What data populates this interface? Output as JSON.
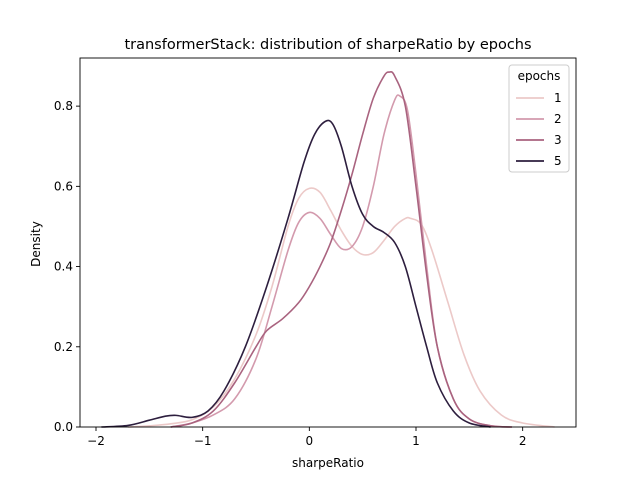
{
  "chart_data": {
    "type": "line",
    "title": "transformerStack: distribution of sharpeRatio by epochs",
    "xlabel": "sharpeRatio",
    "ylabel": "Density",
    "xlim": [
      -2.15,
      2.5
    ],
    "ylim": [
      0,
      0.92
    ],
    "xticks": [
      -2,
      -1,
      0,
      1,
      2
    ],
    "yticks": [
      0.0,
      0.2,
      0.4,
      0.6,
      0.8
    ],
    "grid": false,
    "legend": {
      "title": "epochs",
      "placement": "top-right"
    },
    "series": [
      {
        "name": "1",
        "color": "#ecc9c8",
        "points": [
          [
            -1.7,
            0.0
          ],
          [
            -1.5,
            0.003
          ],
          [
            -1.3,
            0.008
          ],
          [
            -1.1,
            0.018
          ],
          [
            -0.9,
            0.05
          ],
          [
            -0.7,
            0.12
          ],
          [
            -0.5,
            0.23
          ],
          [
            -0.35,
            0.35
          ],
          [
            -0.2,
            0.5
          ],
          [
            -0.1,
            0.57
          ],
          [
            0.0,
            0.595
          ],
          [
            0.1,
            0.585
          ],
          [
            0.2,
            0.54
          ],
          [
            0.3,
            0.49
          ],
          [
            0.4,
            0.45
          ],
          [
            0.5,
            0.43
          ],
          [
            0.6,
            0.435
          ],
          [
            0.7,
            0.465
          ],
          [
            0.8,
            0.5
          ],
          [
            0.9,
            0.52
          ],
          [
            0.95,
            0.52
          ],
          [
            1.05,
            0.505
          ],
          [
            1.15,
            0.44
          ],
          [
            1.3,
            0.31
          ],
          [
            1.45,
            0.18
          ],
          [
            1.6,
            0.09
          ],
          [
            1.8,
            0.03
          ],
          [
            2.0,
            0.01
          ],
          [
            2.3,
            0.0
          ]
        ]
      },
      {
        "name": "2",
        "color": "#d39aad",
        "points": [
          [
            -1.3,
            0.0
          ],
          [
            -1.1,
            0.01
          ],
          [
            -0.9,
            0.03
          ],
          [
            -0.7,
            0.07
          ],
          [
            -0.5,
            0.17
          ],
          [
            -0.35,
            0.3
          ],
          [
            -0.2,
            0.44
          ],
          [
            -0.1,
            0.51
          ],
          [
            0.0,
            0.535
          ],
          [
            0.1,
            0.52
          ],
          [
            0.2,
            0.48
          ],
          [
            0.3,
            0.445
          ],
          [
            0.4,
            0.45
          ],
          [
            0.5,
            0.5
          ],
          [
            0.6,
            0.6
          ],
          [
            0.7,
            0.73
          ],
          [
            0.8,
            0.815
          ],
          [
            0.85,
            0.825
          ],
          [
            0.92,
            0.79
          ],
          [
            1.0,
            0.63
          ],
          [
            1.1,
            0.4
          ],
          [
            1.2,
            0.2
          ],
          [
            1.35,
            0.07
          ],
          [
            1.5,
            0.02
          ],
          [
            1.7,
            0.003
          ],
          [
            1.9,
            0.0
          ]
        ]
      },
      {
        "name": "3",
        "color": "#a9637f",
        "points": [
          [
            -1.3,
            0.0
          ],
          [
            -1.1,
            0.01
          ],
          [
            -0.9,
            0.04
          ],
          [
            -0.7,
            0.11
          ],
          [
            -0.5,
            0.2
          ],
          [
            -0.4,
            0.24
          ],
          [
            -0.25,
            0.27
          ],
          [
            -0.1,
            0.31
          ],
          [
            0.0,
            0.35
          ],
          [
            0.1,
            0.4
          ],
          [
            0.2,
            0.46
          ],
          [
            0.3,
            0.54
          ],
          [
            0.4,
            0.63
          ],
          [
            0.5,
            0.73
          ],
          [
            0.6,
            0.82
          ],
          [
            0.7,
            0.875
          ],
          [
            0.75,
            0.885
          ],
          [
            0.8,
            0.875
          ],
          [
            0.9,
            0.8
          ],
          [
            1.0,
            0.6
          ],
          [
            1.1,
            0.38
          ],
          [
            1.2,
            0.2
          ],
          [
            1.35,
            0.07
          ],
          [
            1.5,
            0.02
          ],
          [
            1.7,
            0.003
          ],
          [
            1.9,
            0.0
          ]
        ]
      },
      {
        "name": "5",
        "color": "#2d1e3e",
        "points": [
          [
            -1.95,
            0.0
          ],
          [
            -1.7,
            0.004
          ],
          [
            -1.5,
            0.017
          ],
          [
            -1.35,
            0.027
          ],
          [
            -1.25,
            0.029
          ],
          [
            -1.1,
            0.024
          ],
          [
            -0.95,
            0.04
          ],
          [
            -0.8,
            0.09
          ],
          [
            -0.6,
            0.2
          ],
          [
            -0.4,
            0.35
          ],
          [
            -0.2,
            0.52
          ],
          [
            -0.05,
            0.66
          ],
          [
            0.05,
            0.73
          ],
          [
            0.15,
            0.762
          ],
          [
            0.22,
            0.755
          ],
          [
            0.3,
            0.7
          ],
          [
            0.4,
            0.6
          ],
          [
            0.5,
            0.53
          ],
          [
            0.6,
            0.5
          ],
          [
            0.7,
            0.485
          ],
          [
            0.8,
            0.46
          ],
          [
            0.9,
            0.4
          ],
          [
            1.0,
            0.3
          ],
          [
            1.1,
            0.2
          ],
          [
            1.2,
            0.11
          ],
          [
            1.35,
            0.04
          ],
          [
            1.5,
            0.01
          ],
          [
            1.7,
            0.0
          ]
        ]
      }
    ]
  }
}
